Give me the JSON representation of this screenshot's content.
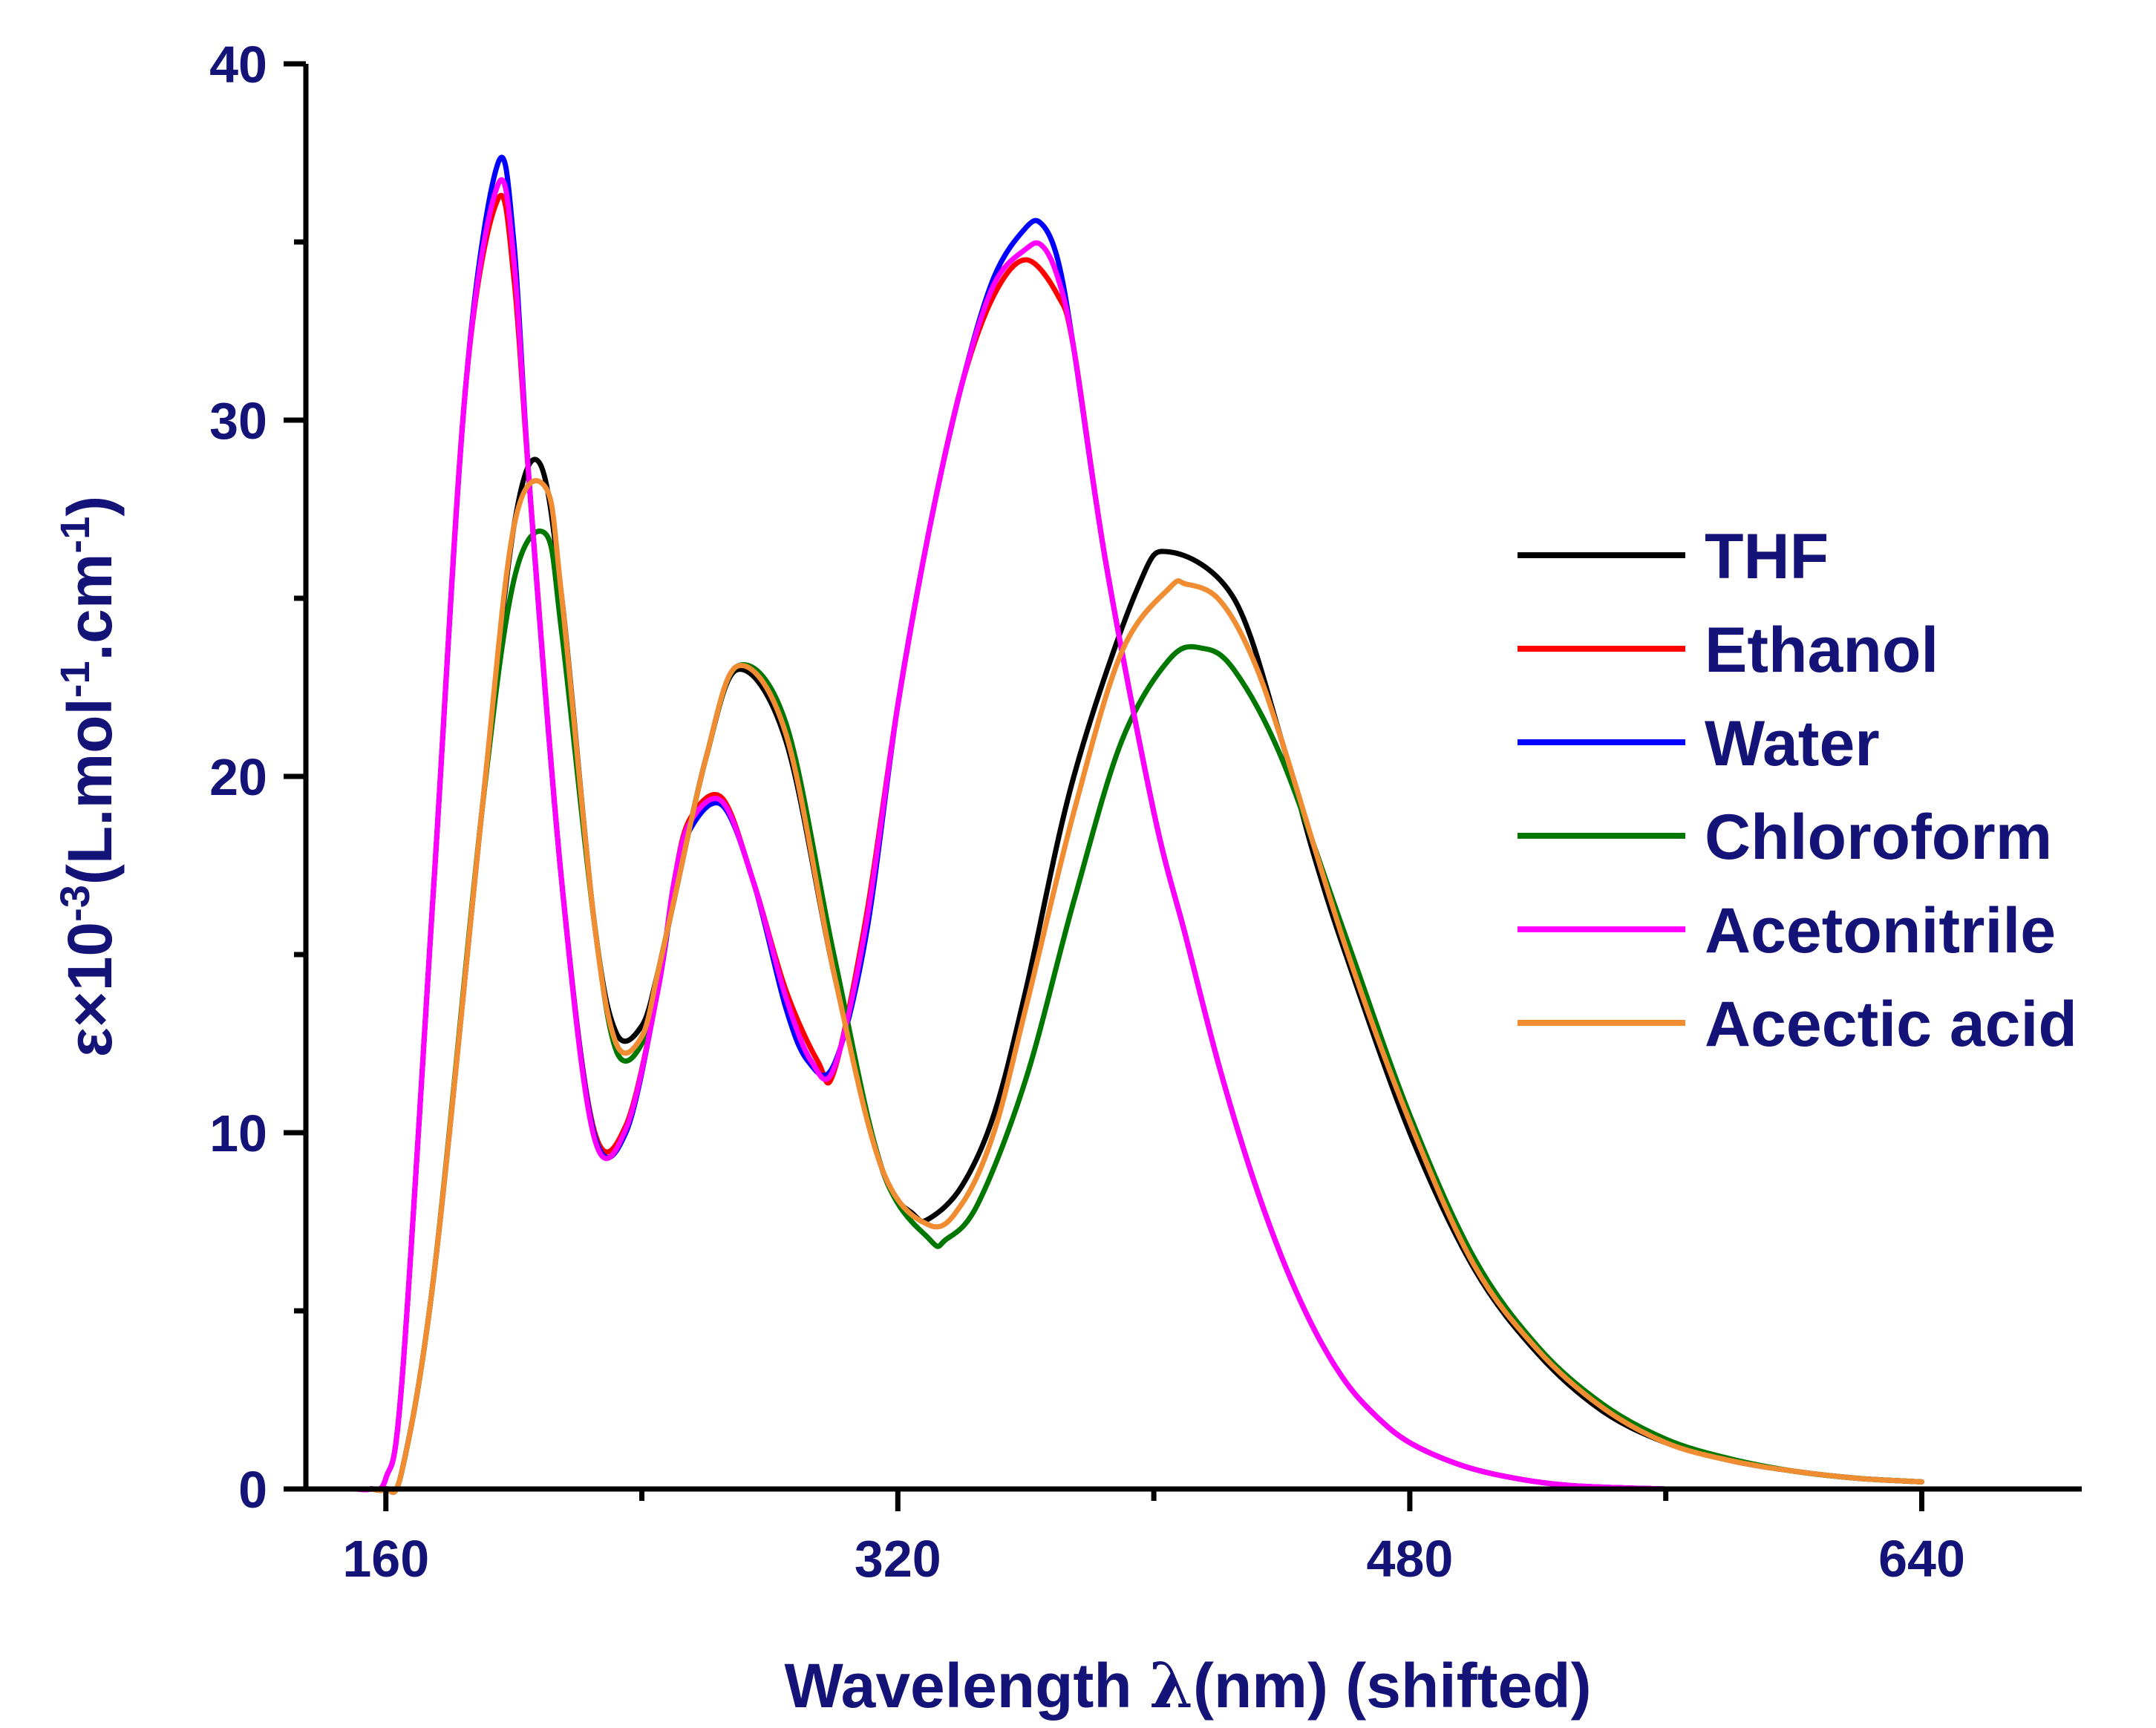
{
  "chart_data": {
    "type": "line",
    "title": "",
    "xlabel_main": "Wavelength ",
    "xlabel_lambda": "λ",
    "xlabel_tail": "(nm) (shifted)",
    "ylabel_base": "ε×10",
    "ylabel_exp1": "-3",
    "ylabel_mid": "(L.mol",
    "ylabel_exp2": "-1",
    "ylabel_mid2": ".cm",
    "ylabel_exp3": "-1",
    "ylabel_end": ")",
    "xlim": [
      135,
      690
    ],
    "ylim": [
      0,
      40
    ],
    "xticks": [
      160,
      320,
      480,
      640
    ],
    "xtick_labels": [
      "160",
      "320",
      "480",
      "640"
    ],
    "xminor": [
      240,
      400,
      560
    ],
    "yticks": [
      0,
      10,
      20,
      30,
      40
    ],
    "ytick_labels": [
      "0",
      "10",
      "20",
      "30",
      "40"
    ],
    "yminor": [
      5,
      15,
      25,
      35
    ],
    "legend_position": "right",
    "series": [
      {
        "name": "THF",
        "color": "#000000",
        "x": [
          135,
          150,
          155,
          160,
          165,
          175,
          190,
          200,
          208,
          215,
          225,
          232,
          240,
          245,
          250,
          260,
          270,
          285,
          300,
          315,
          325,
          330,
          340,
          350,
          360,
          375,
          395,
          405,
          425,
          440,
          450,
          460,
          480,
          500,
          520,
          540,
          560,
          580,
          600,
          620,
          640
        ],
        "y": [
          0,
          0,
          0,
          0,
          0.5,
          6,
          19,
          27,
          28.8,
          25,
          16,
          12.8,
          13,
          14.5,
          16.5,
          20.5,
          23,
          21,
          14.5,
          9,
          7.7,
          7.6,
          8.5,
          10.5,
          14,
          20,
          25.3,
          26.3,
          25,
          21,
          17.8,
          15,
          10,
          6.2,
          3.8,
          2.2,
          1.3,
          0.8,
          0.5,
          0.3,
          0.2
        ]
      },
      {
        "name": "Ethanol",
        "color": "#ff0000",
        "x": [
          135,
          150,
          155,
          160,
          165,
          175,
          185,
          195,
          200,
          205,
          215,
          225,
          235,
          245,
          250,
          255,
          265,
          275,
          285,
          295,
          300,
          310,
          320,
          330,
          340,
          350,
          360,
          370,
          375,
          385,
          400,
          410,
          420,
          430,
          440,
          450,
          460,
          470,
          480,
          495,
          510,
          530,
          560
        ],
        "y": [
          0,
          0,
          0,
          0.3,
          3,
          17,
          31,
          36.2,
          34,
          28,
          17,
          10.1,
          10.2,
          14,
          17,
          18.8,
          19.4,
          17,
          14,
          12,
          11.7,
          16,
          22,
          27,
          31,
          33.5,
          34.5,
          33.5,
          32,
          26,
          19,
          15.5,
          12,
          9,
          6.5,
          4.5,
          3,
          2,
          1.3,
          0.7,
          0.35,
          0.1,
          0
        ]
      },
      {
        "name": "Water",
        "color": "#0000ff",
        "x": [
          135,
          150,
          155,
          160,
          165,
          175,
          185,
          195,
          200,
          205,
          215,
          225,
          235,
          245,
          250,
          255,
          265,
          275,
          285,
          292,
          300,
          310,
          320,
          330,
          340,
          350,
          360,
          365,
          370,
          375,
          385,
          400,
          410,
          420,
          430,
          440,
          450,
          460,
          470,
          480,
          495,
          510,
          530,
          560
        ],
        "y": [
          0,
          0,
          0,
          0.3,
          3,
          17,
          31,
          37.2,
          35,
          28,
          17,
          10,
          10,
          14,
          16.8,
          18.5,
          19.2,
          17,
          13.5,
          12,
          11.9,
          15.5,
          22,
          27,
          31,
          34,
          35.4,
          35.5,
          34.5,
          32,
          26,
          19,
          15.5,
          12,
          9,
          6.5,
          4.5,
          3,
          2,
          1.3,
          0.7,
          0.35,
          0.1,
          0
        ]
      },
      {
        "name": "Chloroform",
        "color": "#007800",
        "x": [
          135,
          150,
          155,
          160,
          165,
          175,
          190,
          200,
          210,
          215,
          225,
          232,
          240,
          245,
          250,
          260,
          270,
          285,
          300,
          315,
          330,
          335,
          345,
          360,
          375,
          390,
          405,
          415,
          425,
          440,
          460,
          480,
          500,
          520,
          540,
          560,
          580,
          600,
          620,
          640
        ],
        "y": [
          0,
          0,
          0,
          0,
          0.5,
          6,
          19,
          25.5,
          26.8,
          24,
          16,
          12.3,
          12.5,
          14.5,
          16.5,
          20.5,
          23.1,
          21.5,
          15,
          9,
          7,
          7,
          8,
          11.5,
          16.5,
          21,
          23.3,
          23.6,
          23,
          20.5,
          15.5,
          10.5,
          6.5,
          4,
          2.4,
          1.4,
          0.85,
          0.5,
          0.3,
          0.2
        ]
      },
      {
        "name": "Acetonitrile",
        "color": "#ff00ff",
        "x": [
          135,
          150,
          155,
          160,
          165,
          175,
          185,
          195,
          200,
          205,
          215,
          225,
          235,
          245,
          250,
          255,
          265,
          275,
          285,
          293,
          300,
          310,
          320,
          330,
          340,
          350,
          360,
          365,
          370,
          375,
          385,
          400,
          410,
          420,
          430,
          440,
          450,
          460,
          470,
          480,
          495,
          510,
          530,
          560
        ],
        "y": [
          0,
          0,
          0,
          0.3,
          3,
          17,
          31,
          36.6,
          34.5,
          28,
          17,
          9.9,
          10.1,
          14,
          17,
          18.7,
          19.3,
          17,
          13.8,
          12,
          11.8,
          15.8,
          22,
          27,
          31,
          33.8,
          34.8,
          34.9,
          34,
          32,
          26,
          19,
          15.5,
          12,
          9,
          6.5,
          4.5,
          3,
          2,
          1.3,
          0.7,
          0.35,
          0.1,
          0
        ]
      },
      {
        "name": "Acectic acid",
        "color": "#f08c32",
        "x": [
          135,
          150,
          155,
          160,
          165,
          175,
          190,
          200,
          210,
          215,
          225,
          232,
          240,
          245,
          250,
          260,
          270,
          285,
          300,
          315,
          330,
          340,
          350,
          360,
          375,
          390,
          405,
          410,
          420,
          430,
          440,
          460,
          480,
          500,
          520,
          540,
          560,
          580,
          600,
          620,
          640
        ],
        "y": [
          0,
          0,
          0,
          0,
          0.5,
          6,
          19,
          27,
          28.1,
          25,
          16,
          12.5,
          12.7,
          14.5,
          16.5,
          20.5,
          23.1,
          21.2,
          14.5,
          9,
          7.4,
          8,
          10,
          13.5,
          19,
          23.5,
          25.3,
          25.4,
          25,
          23.5,
          21,
          15.2,
          10.3,
          6.3,
          3.9,
          2.3,
          1.3,
          0.8,
          0.5,
          0.3,
          0.2
        ]
      }
    ]
  }
}
